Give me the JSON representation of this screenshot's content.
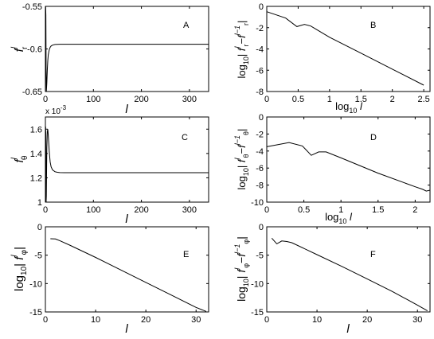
{
  "chart_data": [
    {
      "type": "line",
      "panel_letter": "A",
      "ylabel_html": "f<tspan dy='-7' font-size='9' font-style='italic'>l</tspan><tspan dy='12' font-size='9'>r</tspan>",
      "ylabel": "f^l_r",
      "xlabel": "l",
      "xlim": [
        0,
        340
      ],
      "ylim": [
        -0.65,
        -0.55
      ],
      "xticks": [
        0,
        100,
        200,
        300
      ],
      "xtick_labels": [
        "0",
        "100",
        "200",
        "300"
      ],
      "yticks": [
        -0.65,
        -0.6,
        -0.55
      ],
      "ytick_labels": [
        "-0.65",
        "-0.6",
        "-0.55"
      ],
      "multiplier": "",
      "series": [
        {
          "x": [
            0.5,
            1,
            1.5,
            2,
            3,
            4,
            5,
            6,
            8,
            10,
            12,
            15,
            20,
            25,
            30,
            40,
            50,
            70,
            100,
            150,
            200,
            250,
            300,
            340
          ],
          "values": [
            -0.55,
            -0.56,
            -0.62,
            -0.65,
            -0.64,
            -0.625,
            -0.614,
            -0.607,
            -0.601,
            -0.598,
            -0.5965,
            -0.5955,
            -0.5948,
            -0.5946,
            -0.5945,
            -0.5945,
            -0.5945,
            -0.5945,
            -0.5945,
            -0.5945,
            -0.5945,
            -0.5945,
            -0.5945,
            -0.5945
          ]
        }
      ]
    },
    {
      "type": "line",
      "panel_letter": "B",
      "ylabel": "log10|f^l_r - f^(l-1)_r|",
      "xlabel": "log10 l",
      "xlim": [
        0,
        2.6
      ],
      "ylim": [
        -8,
        0
      ],
      "xticks": [
        0,
        0.5,
        1,
        1.5,
        2,
        2.5
      ],
      "xtick_labels": [
        "0",
        "0.5",
        "1",
        "1.5",
        "2",
        "2.5"
      ],
      "yticks": [
        -8,
        -6,
        -4,
        -2,
        0
      ],
      "ytick_labels": [
        "-8",
        "-6",
        "-4",
        "-2",
        "0"
      ],
      "multiplier": "",
      "series": [
        {
          "x": [
            0,
            0.3,
            0.48,
            0.6,
            0.7,
            0.8,
            1.0,
            1.5,
            2.0,
            2.5
          ],
          "values": [
            -0.5,
            -1.1,
            -1.9,
            -1.7,
            -1.85,
            -2.2,
            -2.9,
            -4.4,
            -5.9,
            -7.4
          ]
        }
      ]
    },
    {
      "type": "line",
      "panel_letter": "C",
      "ylabel": "f^l_θ",
      "xlabel": "l",
      "xlim": [
        0,
        340
      ],
      "ylim": [
        1.0,
        1.7
      ],
      "xticks": [
        0,
        100,
        200,
        300
      ],
      "xtick_labels": [
        "0",
        "100",
        "200",
        "300"
      ],
      "yticks": [
        1.0,
        1.2,
        1.4,
        1.6
      ],
      "ytick_labels": [
        "1",
        "1.2",
        "1.4",
        "1.6"
      ],
      "multiplier": "x 10^-3",
      "series": [
        {
          "x": [
            0.5,
            1,
            1.5,
            2,
            3,
            4,
            5,
            6,
            8,
            10,
            12,
            15,
            20,
            25,
            30,
            40,
            50,
            70,
            100,
            150,
            200,
            250,
            300,
            340
          ],
          "values": [
            1.62,
            1.55,
            1.0,
            1.05,
            1.45,
            1.58,
            1.6,
            1.55,
            1.42,
            1.33,
            1.29,
            1.265,
            1.25,
            1.245,
            1.243,
            1.242,
            1.242,
            1.242,
            1.242,
            1.242,
            1.242,
            1.242,
            1.242,
            1.242
          ]
        }
      ]
    },
    {
      "type": "line",
      "panel_letter": "D",
      "ylabel": "log10|f^l_θ - f^(l-1)_θ|",
      "xlabel": "log10 l",
      "xlim": [
        0,
        2.2
      ],
      "ylim": [
        -10,
        0
      ],
      "xticks": [
        0,
        0.5,
        1,
        1.5,
        2
      ],
      "xtick_labels": [
        "0",
        "0.5",
        "1",
        "1.5",
        "2"
      ],
      "yticks": [
        -10,
        -8,
        -6,
        -4,
        -2,
        0
      ],
      "ytick_labels": [
        "-10",
        "-8",
        "-6",
        "-4",
        "-2",
        "0"
      ],
      "multiplier": "",
      "series": [
        {
          "x": [
            0,
            0.3,
            0.48,
            0.6,
            0.7,
            0.8,
            1.0,
            1.5,
            2.0,
            2.1,
            2.15,
            2.2
          ],
          "values": [
            -3.5,
            -3.0,
            -3.4,
            -4.5,
            -4.1,
            -4.1,
            -4.8,
            -6.6,
            -8.2,
            -8.5,
            -8.7,
            -8.6
          ]
        }
      ]
    },
    {
      "type": "line",
      "panel_letter": "E",
      "ylabel": "log10|f^l_φ|",
      "xlabel": "l",
      "xlim": [
        0,
        32.5
      ],
      "ylim": [
        -15,
        0
      ],
      "xticks": [
        0,
        10,
        20,
        30
      ],
      "xtick_labels": [
        "0",
        "10",
        "20",
        "30"
      ],
      "yticks": [
        -15,
        -10,
        -5,
        0
      ],
      "ytick_labels": [
        "-15",
        "-10",
        "-5",
        "0"
      ],
      "multiplier": "",
      "series": [
        {
          "x": [
            1,
            2,
            3,
            5,
            10,
            15,
            20,
            25,
            30,
            32
          ],
          "values": [
            -2.1,
            -2.15,
            -2.5,
            -3.3,
            -5.4,
            -7.6,
            -9.8,
            -12.0,
            -14.2,
            -14.9
          ]
        }
      ]
    },
    {
      "type": "line",
      "panel_letter": "F",
      "ylabel": "log10|f^l_φ - f^(l-1)_φ|",
      "xlabel": "l",
      "xlim": [
        0,
        32.5
      ],
      "ylim": [
        -15,
        0
      ],
      "xticks": [
        0,
        10,
        20,
        30
      ],
      "xtick_labels": [
        "0",
        "10",
        "20",
        "30"
      ],
      "yticks": [
        -15,
        -10,
        -5,
        0
      ],
      "ytick_labels": [
        "-15",
        "-10",
        "-5",
        "0"
      ],
      "multiplier": "",
      "series": [
        {
          "x": [
            1,
            2,
            3,
            4,
            5,
            10,
            15,
            20,
            25,
            30,
            32
          ],
          "values": [
            -2.0,
            -3.0,
            -2.5,
            -2.6,
            -2.8,
            -4.9,
            -7.0,
            -9.2,
            -11.4,
            -13.8,
            -14.8
          ]
        }
      ]
    }
  ]
}
